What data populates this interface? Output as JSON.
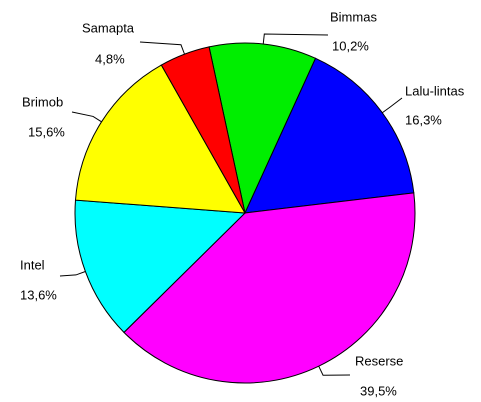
{
  "chart_data": {
    "type": "pie",
    "categories": [
      "Bimmas",
      "Lalu-lintas",
      "Reserse",
      "Intel",
      "Brimob",
      "Samapta"
    ],
    "values": [
      10.2,
      16.3,
      39.5,
      13.6,
      15.6,
      4.8
    ],
    "value_labels": [
      "10,2%",
      "16,3%",
      "39,5%",
      "13,6%",
      "15,6%",
      "4,8%"
    ],
    "colors": [
      "#00ee00",
      "#0000ff",
      "#ff00ff",
      "#00ffff",
      "#ffff00",
      "#ff0000"
    ]
  }
}
